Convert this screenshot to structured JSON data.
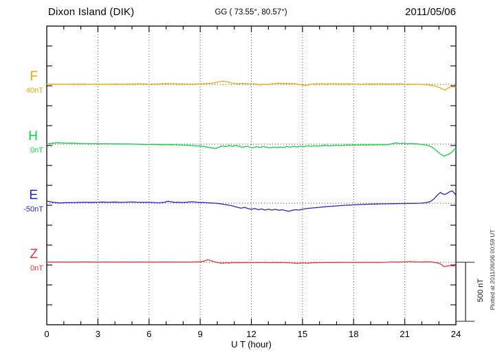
{
  "header": {
    "station": "Dixon Island (DIK)",
    "coords": "GG ( 73.55°,  80.57°)",
    "date": "2011/05/06"
  },
  "x_axis": {
    "label": "U T (hour)",
    "tick_labels": [
      "0",
      "3",
      "6",
      "9",
      "12",
      "15",
      "18",
      "21",
      "24"
    ],
    "major_tick_hours": 3,
    "minor_tick_hours": 1,
    "range_hours": [
      0,
      24
    ]
  },
  "scale_bar": {
    "label": "500 nT",
    "nT": 500
  },
  "footer_note": "Plotted at 2011/06/06 00:59 UT",
  "colors": {
    "F": "#F2A900",
    "H": "#00D840",
    "E": "#2222CC",
    "Z": "#EE3333",
    "frame": "#000000",
    "baseline_dots": "#333333",
    "grid_dots": "#555555"
  },
  "chart_data": {
    "type": "line",
    "title": "Dixon Island (DIK) magnetogram 2011/05/06",
    "xlabel": "U T (hour)",
    "x_range_hours": [
      0,
      24
    ],
    "grid": "dotted vertical every 3 h, dotted baseline per component",
    "scale_bar_nT": 500,
    "series": [
      {
        "name": "F",
        "label": "F",
        "baseline_label": "40nT",
        "baseline_nT": 40,
        "color": "#F2A900",
        "points_h_offsetnT": [
          [
            0,
            2
          ],
          [
            0.5,
            3
          ],
          [
            1,
            2
          ],
          [
            1.5,
            3
          ],
          [
            2,
            4
          ],
          [
            2.5,
            2
          ],
          [
            3,
            3
          ],
          [
            3.5,
            2
          ],
          [
            4,
            4
          ],
          [
            4.5,
            3
          ],
          [
            5,
            4
          ],
          [
            5.5,
            6
          ],
          [
            6,
            3
          ],
          [
            6.5,
            4
          ],
          [
            7,
            7
          ],
          [
            7.5,
            5
          ],
          [
            8,
            4
          ],
          [
            8.5,
            3
          ],
          [
            9,
            5
          ],
          [
            9.5,
            8
          ],
          [
            9.8,
            12
          ],
          [
            10.1,
            21
          ],
          [
            10.35,
            29
          ],
          [
            10.6,
            21
          ],
          [
            10.9,
            11
          ],
          [
            11.2,
            6
          ],
          [
            11.5,
            9
          ],
          [
            11.8,
            5
          ],
          [
            12,
            6
          ],
          [
            12.3,
            3
          ],
          [
            12.55,
            -5
          ],
          [
            12.7,
            2
          ],
          [
            12.9,
            -2
          ],
          [
            13.1,
            3
          ],
          [
            13.4,
            8
          ],
          [
            13.7,
            10
          ],
          [
            14,
            7
          ],
          [
            14.3,
            9
          ],
          [
            14.6,
            5
          ],
          [
            14.9,
            -2
          ],
          [
            15.1,
            -10
          ],
          [
            15.35,
            -4
          ],
          [
            15.6,
            4
          ],
          [
            16,
            6
          ],
          [
            16.4,
            4
          ],
          [
            16.8,
            6
          ],
          [
            17.2,
            4
          ],
          [
            17.6,
            5
          ],
          [
            18,
            4
          ],
          [
            18.4,
            3
          ],
          [
            18.8,
            5
          ],
          [
            19.2,
            4
          ],
          [
            19.6,
            5
          ],
          [
            20,
            4
          ],
          [
            20.4,
            5
          ],
          [
            20.8,
            4
          ],
          [
            21.2,
            3
          ],
          [
            21.6,
            2
          ],
          [
            22,
            0
          ],
          [
            22.4,
            -5
          ],
          [
            22.8,
            -14
          ],
          [
            23.1,
            -30
          ],
          [
            23.35,
            -48
          ],
          [
            23.55,
            -30
          ],
          [
            23.7,
            -16
          ],
          [
            23.85,
            -22
          ],
          [
            24,
            -18
          ]
        ]
      },
      {
        "name": "H",
        "label": "H",
        "baseline_label": "0nT",
        "baseline_nT": 0,
        "color": "#00D840",
        "points_h_offsetnT": [
          [
            0,
            2
          ],
          [
            0.3,
            8
          ],
          [
            0.6,
            13
          ],
          [
            0.9,
            11
          ],
          [
            1.2,
            9
          ],
          [
            1.5,
            10
          ],
          [
            1.8,
            7
          ],
          [
            2.1,
            6
          ],
          [
            2.4,
            5
          ],
          [
            2.7,
            4
          ],
          [
            3,
            4
          ],
          [
            3.3,
            3
          ],
          [
            3.6,
            3
          ],
          [
            4,
            2
          ],
          [
            4.4,
            2
          ],
          [
            4.8,
            1
          ],
          [
            5.2,
            0
          ],
          [
            5.6,
            -2
          ],
          [
            6,
            -3
          ],
          [
            6.3,
            -1
          ],
          [
            6.6,
            -4
          ],
          [
            7,
            -5
          ],
          [
            7.3,
            -4
          ],
          [
            7.6,
            -6
          ],
          [
            8,
            -8
          ],
          [
            8.3,
            -10
          ],
          [
            8.6,
            -12
          ],
          [
            9,
            -16
          ],
          [
            9.3,
            -22
          ],
          [
            9.6,
            -30
          ],
          [
            9.9,
            -36
          ],
          [
            10.1,
            -26
          ],
          [
            10.3,
            -14
          ],
          [
            10.5,
            -22
          ],
          [
            10.7,
            -10
          ],
          [
            10.9,
            -18
          ],
          [
            11.1,
            -10
          ],
          [
            11.3,
            -20
          ],
          [
            11.5,
            -26
          ],
          [
            11.7,
            -18
          ],
          [
            11.9,
            -24
          ],
          [
            12.1,
            -30
          ],
          [
            12.3,
            -22
          ],
          [
            12.5,
            -28
          ],
          [
            12.7,
            -20
          ],
          [
            12.9,
            -26
          ],
          [
            13.1,
            -32
          ],
          [
            13.3,
            -24
          ],
          [
            13.5,
            -30
          ],
          [
            13.7,
            -24
          ],
          [
            13.9,
            -28
          ],
          [
            14.1,
            -20
          ],
          [
            14.3,
            -26
          ],
          [
            14.5,
            -18
          ],
          [
            14.7,
            -24
          ],
          [
            14.9,
            -16
          ],
          [
            15.1,
            -22
          ],
          [
            15.3,
            -14
          ],
          [
            15.5,
            -18
          ],
          [
            15.7,
            -12
          ],
          [
            16,
            -16
          ],
          [
            16.3,
            -10
          ],
          [
            16.6,
            -14
          ],
          [
            17,
            -9
          ],
          [
            17.3,
            -12
          ],
          [
            17.6,
            -7
          ],
          [
            18,
            -9
          ],
          [
            18.4,
            -6
          ],
          [
            18.8,
            -7
          ],
          [
            19.2,
            -5
          ],
          [
            19.6,
            -6
          ],
          [
            20,
            -4
          ],
          [
            20.3,
            4
          ],
          [
            20.5,
            12
          ],
          [
            20.7,
            5
          ],
          [
            20.9,
            9
          ],
          [
            21.1,
            3
          ],
          [
            21.4,
            6
          ],
          [
            21.7,
            2
          ],
          [
            22,
            -3
          ],
          [
            22.3,
            -8
          ],
          [
            22.6,
            -25
          ],
          [
            22.9,
            -60
          ],
          [
            23.1,
            -85
          ],
          [
            23.3,
            -100
          ],
          [
            23.5,
            -90
          ],
          [
            23.7,
            -75
          ],
          [
            23.85,
            -55
          ],
          [
            23.95,
            -40
          ],
          [
            24,
            -48
          ]
        ]
      },
      {
        "name": "E",
        "label": "E",
        "baseline_label": "-50nT",
        "baseline_nT": -50,
        "color": "#2222CC",
        "points_h_offsetnT": [
          [
            0,
            18
          ],
          [
            0.2,
            12
          ],
          [
            0.4,
            7
          ],
          [
            0.6,
            4
          ],
          [
            0.8,
            2
          ],
          [
            1,
            4
          ],
          [
            1.3,
            6
          ],
          [
            1.6,
            5
          ],
          [
            2,
            8
          ],
          [
            2.3,
            9
          ],
          [
            2.6,
            7
          ],
          [
            3,
            9
          ],
          [
            3.3,
            10
          ],
          [
            3.6,
            8
          ],
          [
            4,
            10
          ],
          [
            4.3,
            8
          ],
          [
            4.6,
            9
          ],
          [
            5,
            11
          ],
          [
            5.3,
            9
          ],
          [
            5.6,
            8
          ],
          [
            6,
            9
          ],
          [
            6.3,
            5
          ],
          [
            6.6,
            3
          ],
          [
            6.9,
            8
          ],
          [
            7.1,
            16
          ],
          [
            7.3,
            12
          ],
          [
            7.5,
            7
          ],
          [
            7.7,
            9
          ],
          [
            8,
            6
          ],
          [
            8.3,
            10
          ],
          [
            8.6,
            12
          ],
          [
            8.8,
            8
          ],
          [
            9,
            7
          ],
          [
            9.3,
            5
          ],
          [
            9.6,
            2
          ],
          [
            9.9,
            0
          ],
          [
            10.2,
            -5
          ],
          [
            10.5,
            -12
          ],
          [
            10.8,
            -20
          ],
          [
            11,
            -28
          ],
          [
            11.2,
            -35
          ],
          [
            11.4,
            -42
          ],
          [
            11.6,
            -35
          ],
          [
            11.8,
            -45
          ],
          [
            12,
            -52
          ],
          [
            12.2,
            -44
          ],
          [
            12.4,
            -55
          ],
          [
            12.6,
            -48
          ],
          [
            12.8,
            -58
          ],
          [
            13,
            -50
          ],
          [
            13.2,
            -58
          ],
          [
            13.4,
            -52
          ],
          [
            13.6,
            -60
          ],
          [
            13.8,
            -55
          ],
          [
            14,
            -62
          ],
          [
            14.2,
            -68
          ],
          [
            14.4,
            -60
          ],
          [
            14.6,
            -55
          ],
          [
            14.8,
            -58
          ],
          [
            15,
            -50
          ],
          [
            15.3,
            -44
          ],
          [
            15.6,
            -40
          ],
          [
            16,
            -35
          ],
          [
            16.3,
            -30
          ],
          [
            16.6,
            -27
          ],
          [
            17,
            -23
          ],
          [
            17.3,
            -20
          ],
          [
            17.6,
            -17
          ],
          [
            18,
            -14
          ],
          [
            18.4,
            -11
          ],
          [
            18.8,
            -9
          ],
          [
            19.2,
            -7
          ],
          [
            19.6,
            -6
          ],
          [
            20,
            -5
          ],
          [
            20.4,
            -4
          ],
          [
            20.8,
            -3
          ],
          [
            21.2,
            -2
          ],
          [
            21.6,
            -1
          ],
          [
            21.9,
            0
          ],
          [
            22.1,
            2
          ],
          [
            22.3,
            6
          ],
          [
            22.5,
            14
          ],
          [
            22.7,
            35
          ],
          [
            22.85,
            60
          ],
          [
            23,
            80
          ],
          [
            23.1,
            92
          ],
          [
            23.2,
            80
          ],
          [
            23.35,
            74
          ],
          [
            23.5,
            85
          ],
          [
            23.65,
            98
          ],
          [
            23.8,
            104
          ],
          [
            23.9,
            86
          ],
          [
            24,
            68
          ]
        ]
      },
      {
        "name": "Z",
        "label": "Z",
        "baseline_label": "0nT",
        "baseline_nT": 0,
        "color": "#EE3333",
        "points_h_offsetnT": [
          [
            0,
            2
          ],
          [
            0.5,
            1
          ],
          [
            1,
            2
          ],
          [
            1.5,
            1
          ],
          [
            2,
            2
          ],
          [
            2.5,
            2
          ],
          [
            3,
            1
          ],
          [
            3.5,
            2
          ],
          [
            4,
            1
          ],
          [
            4.5,
            2
          ],
          [
            5,
            1
          ],
          [
            5.5,
            2
          ],
          [
            6,
            1
          ],
          [
            6.5,
            1
          ],
          [
            7,
            2
          ],
          [
            7.5,
            1
          ],
          [
            8,
            1
          ],
          [
            8.5,
            2
          ],
          [
            9,
            4
          ],
          [
            9.2,
            9
          ],
          [
            9.45,
            22
          ],
          [
            9.7,
            10
          ],
          [
            9.9,
            2
          ],
          [
            10.1,
            -4
          ],
          [
            10.3,
            -9
          ],
          [
            10.5,
            -4
          ],
          [
            10.7,
            -7
          ],
          [
            10.9,
            -3
          ],
          [
            11.2,
            -4
          ],
          [
            11.5,
            -2
          ],
          [
            12,
            -3
          ],
          [
            12.5,
            -2
          ],
          [
            13,
            -3
          ],
          [
            13.5,
            -2
          ],
          [
            14,
            -3
          ],
          [
            14.4,
            -6
          ],
          [
            14.7,
            -10
          ],
          [
            15,
            -6
          ],
          [
            15.3,
            -8
          ],
          [
            15.6,
            -4
          ],
          [
            16,
            -3
          ],
          [
            16.5,
            -2
          ],
          [
            17,
            -2
          ],
          [
            17.5,
            -1
          ],
          [
            18,
            -2
          ],
          [
            18.5,
            -1
          ],
          [
            19,
            -1
          ],
          [
            19.5,
            -2
          ],
          [
            20,
            0
          ],
          [
            20.3,
            3
          ],
          [
            20.6,
            1
          ],
          [
            21,
            3
          ],
          [
            21.3,
            6
          ],
          [
            21.6,
            3
          ],
          [
            22,
            2
          ],
          [
            22.3,
            4
          ],
          [
            22.6,
            1
          ],
          [
            22.9,
            -5
          ],
          [
            23.1,
            -14
          ],
          [
            23.3,
            -38
          ],
          [
            23.5,
            -32
          ],
          [
            23.7,
            -28
          ],
          [
            23.85,
            -30
          ],
          [
            24,
            -28
          ]
        ]
      }
    ]
  }
}
